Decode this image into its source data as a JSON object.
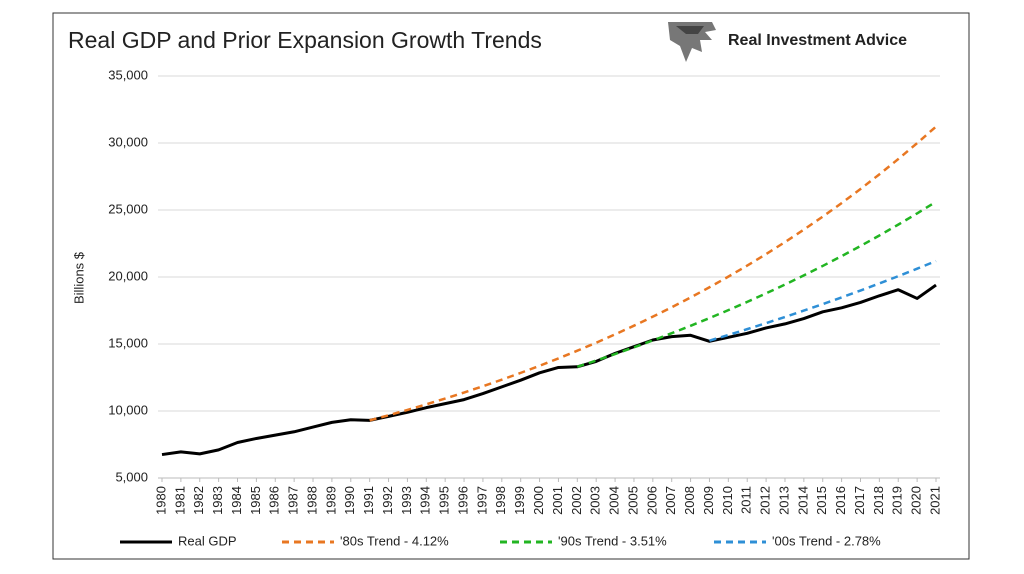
{
  "chart_data": {
    "type": "line",
    "title": "Real GDP and Prior Expansion Growth Trends",
    "brand": "Real Investment Advice",
    "ylabel": "Billions $",
    "x": [
      1980,
      1981,
      1982,
      1983,
      1984,
      1985,
      1986,
      1987,
      1988,
      1989,
      1990,
      1991,
      1992,
      1993,
      1994,
      1995,
      1996,
      1997,
      1998,
      1999,
      2000,
      2001,
      2002,
      2003,
      2004,
      2005,
      2006,
      2007,
      2008,
      2009,
      2010,
      2011,
      2012,
      2013,
      2014,
      2015,
      2016,
      2017,
      2018,
      2019,
      2020,
      2021
    ],
    "xlim": [
      1980,
      2021
    ],
    "xticks": [
      1980,
      1981,
      1982,
      1983,
      1984,
      1985,
      1986,
      1987,
      1988,
      1989,
      1990,
      1991,
      1992,
      1993,
      1994,
      1995,
      1996,
      1997,
      1998,
      1999,
      2000,
      2001,
      2002,
      2003,
      2004,
      2005,
      2006,
      2007,
      2008,
      2009,
      2010,
      2011,
      2012,
      2013,
      2014,
      2015,
      2016,
      2017,
      2018,
      2019,
      2020,
      2021
    ],
    "ylim": [
      5000,
      35000
    ],
    "yticks": [
      {
        "value": 5000,
        "label": "5,000"
      },
      {
        "value": 10000,
        "label": "10,000"
      },
      {
        "value": 15000,
        "label": "15,000"
      },
      {
        "value": 20000,
        "label": "20,000"
      },
      {
        "value": 25000,
        "label": "25,000"
      },
      {
        "value": 30000,
        "label": "30,000"
      },
      {
        "value": 35000,
        "label": "35,000"
      }
    ],
    "grid": true,
    "legend": "bottom",
    "series": [
      {
        "name": "Real GDP",
        "color": "#000000",
        "dash": false,
        "values": [
          6750,
          6950,
          6800,
          7100,
          7650,
          7950,
          8200,
          8450,
          8800,
          9150,
          9350,
          9300,
          9600,
          9900,
          10250,
          10550,
          10850,
          11300,
          11800,
          12300,
          12850,
          13250,
          13300,
          13700,
          14300,
          14800,
          15300,
          15550,
          15650,
          15200,
          15500,
          15800,
          16200,
          16500,
          16900,
          17400,
          17700,
          18100,
          18600,
          19050,
          18400,
          19400
        ]
      },
      {
        "name": "'80s Trend - 4.12%",
        "color": "#e87722",
        "dash": true,
        "values": [
          null,
          null,
          null,
          null,
          null,
          null,
          null,
          null,
          null,
          null,
          null,
          9300,
          9683,
          10082,
          10497,
          10930,
          11380,
          11849,
          12337,
          12845,
          13374,
          13925,
          14499,
          15096,
          15718,
          16366,
          17040,
          17742,
          18473,
          19234,
          20027,
          20852,
          21711,
          22605,
          23537,
          24506,
          25516,
          26567,
          27662,
          28801,
          29988,
          31223
        ]
      },
      {
        "name": "'90s Trend - 3.51%",
        "color": "#22b522",
        "dash": true,
        "values": [
          null,
          null,
          null,
          null,
          null,
          null,
          null,
          null,
          null,
          null,
          null,
          null,
          null,
          null,
          null,
          null,
          null,
          null,
          null,
          null,
          null,
          null,
          13300,
          13767,
          14250,
          14750,
          15268,
          15804,
          16359,
          16933,
          17527,
          18142,
          18779,
          19438,
          20120,
          20826,
          21557,
          22314,
          23097,
          23908,
          24747,
          25616
        ]
      },
      {
        "name": "'00s Trend - 2.78%",
        "color": "#2e8fd6",
        "dash": true,
        "values": [
          null,
          null,
          null,
          null,
          null,
          null,
          null,
          null,
          null,
          null,
          null,
          null,
          null,
          null,
          null,
          null,
          null,
          null,
          null,
          null,
          null,
          null,
          null,
          null,
          null,
          null,
          null,
          null,
          null,
          15250,
          15674,
          16110,
          16558,
          17018,
          17491,
          17977,
          18477,
          18991,
          19519,
          20062,
          20620,
          21193
        ]
      }
    ]
  }
}
